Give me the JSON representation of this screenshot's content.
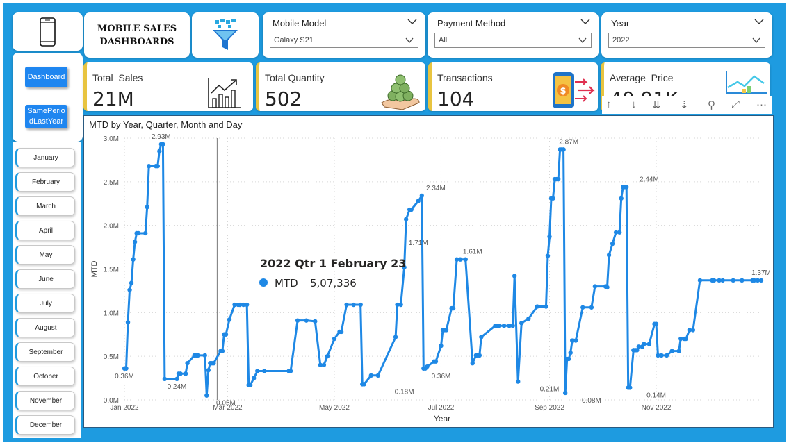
{
  "header": {
    "title_line1": "MOBILE SALES",
    "title_line2": "DASHBOARDS"
  },
  "icons": {
    "phone": "smartphone-icon",
    "filter": "funnel-filter-icon",
    "sales": "growth-bar-chart-icon",
    "quantity": "money-stack-hand-icon",
    "transactions": "mobile-payment-icon",
    "average": "line-bar-chart-icon"
  },
  "slicers": {
    "model": {
      "label": "Mobile Model",
      "value": "Galaxy S21"
    },
    "payment": {
      "label": "Payment Method",
      "value": "All"
    },
    "year": {
      "label": "Year",
      "value": "2022"
    }
  },
  "nav": {
    "dashboard": "Dashboard",
    "same_period_line1": "SamePerio",
    "same_period_line2": "dLastYear"
  },
  "months": [
    "January",
    "February",
    "March",
    "April",
    "May",
    "June",
    "July",
    "August",
    "September",
    "October",
    "November",
    "December"
  ],
  "kpis": {
    "sales": {
      "label": "Total_Sales",
      "value": "21M"
    },
    "quantity": {
      "label": "Total Quantity",
      "value": "502"
    },
    "transactions": {
      "label": "Transactions",
      "value": "104"
    },
    "average": {
      "label": "Average_Price",
      "value": "40.91K"
    }
  },
  "toolbar": {
    "up": "↑",
    "down": "↓",
    "expand_all": "⇊",
    "drill": "⇣",
    "filter": "⚲",
    "focus": "⤢",
    "more": "⋯"
  },
  "colors": {
    "background": "#1e9be0",
    "line": "#1e88e5",
    "kpi_accent": "#e8c440",
    "nav_button": "#1f86f0"
  },
  "tooltip": {
    "title": "2022 Qtr 1 February 23",
    "series": "MTD",
    "value": "5,07,336"
  },
  "chart_data": {
    "type": "line",
    "title": "MTD by Year, Quarter, Month and Day",
    "xlabel": "Year",
    "ylabel": "MTD",
    "ylim": [
      0,
      3.0
    ],
    "y_ticks": [
      "0.0M",
      "0.5M",
      "1.0M",
      "1.5M",
      "2.0M",
      "2.5M",
      "3.0M"
    ],
    "x_ticks": [
      "Jan 2022",
      "Mar 2022",
      "May 2022",
      "Jul 2022",
      "Sep 2022",
      "Nov 2022"
    ],
    "x_tick_dates": [
      "2022-01-01",
      "2022-03-01",
      "2022-05-01",
      "2022-07-01",
      "2022-09-01",
      "2022-11-01"
    ],
    "grid": true,
    "series": [
      {
        "name": "MTD",
        "x": [
          "2022-01-01",
          "2022-01-02",
          "2022-01-03",
          "2022-01-04",
          "2022-01-05",
          "2022-01-06",
          "2022-01-07",
          "2022-01-08",
          "2022-01-09",
          "2022-01-13",
          "2022-01-14",
          "2022-01-15",
          "2022-01-19",
          "2022-01-20",
          "2022-01-21",
          "2022-01-22",
          "2022-01-23",
          "2022-01-24",
          "2022-01-31",
          "2022-02-01",
          "2022-02-02",
          "2022-02-05",
          "2022-02-06",
          "2022-02-10",
          "2022-02-11",
          "2022-02-12",
          "2022-02-16",
          "2022-02-17",
          "2022-02-18",
          "2022-02-19",
          "2022-02-20",
          "2022-02-21",
          "2022-02-25",
          "2022-02-26",
          "2022-02-27",
          "2022-02-28",
          "2022-03-02",
          "2022-03-05",
          "2022-03-07",
          "2022-03-08",
          "2022-03-10",
          "2022-03-12",
          "2022-03-13",
          "2022-03-14",
          "2022-03-16",
          "2022-03-18",
          "2022-03-22",
          "2022-04-05",
          "2022-04-06",
          "2022-04-10",
          "2022-04-15",
          "2022-04-20",
          "2022-04-23",
          "2022-04-25",
          "2022-04-27",
          "2022-05-01",
          "2022-05-04",
          "2022-05-05",
          "2022-05-08",
          "2022-05-12",
          "2022-05-16",
          "2022-05-17",
          "2022-05-18",
          "2022-05-22",
          "2022-05-26",
          "2022-06-05",
          "2022-06-06",
          "2022-06-08",
          "2022-06-10",
          "2022-06-11",
          "2022-06-13",
          "2022-06-14",
          "2022-06-18",
          "2022-06-20",
          "2022-06-21",
          "2022-06-22",
          "2022-06-23",
          "2022-06-27",
          "2022-06-28",
          "2022-07-01",
          "2022-07-02",
          "2022-07-03",
          "2022-07-04",
          "2022-07-07",
          "2022-07-08",
          "2022-07-10",
          "2022-07-12",
          "2022-07-15",
          "2022-07-19",
          "2022-07-21",
          "2022-07-22",
          "2022-07-23",
          "2022-07-24",
          "2022-08-01",
          "2022-08-02",
          "2022-08-03",
          "2022-08-06",
          "2022-08-09",
          "2022-08-11",
          "2022-08-12",
          "2022-08-14",
          "2022-08-16",
          "2022-08-20",
          "2022-08-25",
          "2022-08-30",
          "2022-08-31",
          "2022-09-01",
          "2022-09-02",
          "2022-09-03",
          "2022-09-04",
          "2022-09-05",
          "2022-09-06",
          "2022-09-07",
          "2022-09-08",
          "2022-09-09",
          "2022-09-10",
          "2022-09-11",
          "2022-09-12",
          "2022-09-13",
          "2022-09-14",
          "2022-09-16",
          "2022-09-20",
          "2022-09-25",
          "2022-09-27",
          "2022-10-03",
          "2022-10-04",
          "2022-10-05",
          "2022-10-07",
          "2022-10-09",
          "2022-10-11",
          "2022-10-12",
          "2022-10-13",
          "2022-10-14",
          "2022-10-15",
          "2022-10-16",
          "2022-10-17",
          "2022-10-19",
          "2022-10-20",
          "2022-10-21",
          "2022-10-22",
          "2022-10-24",
          "2022-10-25",
          "2022-10-28",
          "2022-10-31",
          "2022-11-01",
          "2022-11-02",
          "2022-11-04",
          "2022-11-07",
          "2022-11-10",
          "2022-11-14",
          "2022-11-15",
          "2022-11-17",
          "2022-11-18",
          "2022-11-20",
          "2022-11-22",
          "2022-11-26",
          "2022-12-03",
          "2022-12-04",
          "2022-12-07",
          "2022-12-09",
          "2022-12-15",
          "2022-12-20",
          "2022-12-26",
          "2022-12-27",
          "2022-12-29",
          "2022-12-31"
        ],
        "values": [
          0.36,
          0.36,
          0.89,
          1.26,
          1.34,
          1.61,
          1.81,
          1.91,
          1.91,
          1.91,
          2.21,
          2.68,
          2.68,
          2.68,
          2.85,
          2.93,
          2.93,
          0.24,
          0.24,
          0.3,
          0.3,
          0.3,
          0.42,
          0.51,
          0.51,
          0.51,
          0.51,
          0.05,
          0.34,
          0.42,
          0.42,
          0.42,
          0.56,
          0.56,
          0.75,
          0.75,
          0.92,
          1.09,
          1.09,
          1.09,
          1.09,
          1.09,
          0.17,
          0.17,
          0.25,
          0.33,
          0.33,
          0.33,
          0.33,
          0.91,
          0.91,
          0.9,
          0.4,
          0.4,
          0.5,
          0.7,
          0.78,
          0.78,
          1.09,
          1.09,
          1.09,
          0.18,
          0.18,
          0.28,
          0.28,
          0.72,
          1.09,
          1.09,
          1.52,
          2.07,
          2.18,
          2.18,
          2.28,
          2.34,
          0.36,
          0.36,
          0.38,
          0.44,
          0.44,
          0.62,
          0.8,
          0.8,
          0.8,
          1.05,
          1.05,
          1.61,
          1.61,
          1.61,
          0.42,
          0.51,
          0.51,
          0.51,
          0.72,
          0.85,
          0.85,
          0.85,
          0.85,
          0.85,
          0.85,
          1.42,
          0.21,
          0.88,
          0.93,
          1.07,
          1.07,
          1.65,
          1.87,
          2.31,
          2.31,
          2.53,
          2.53,
          2.53,
          2.87,
          2.87,
          2.87,
          0.08,
          0.47,
          0.47,
          0.54,
          0.68,
          0.68,
          1.06,
          1.06,
          1.3,
          1.3,
          1.29,
          1.66,
          1.79,
          1.92,
          1.92,
          2.31,
          2.44,
          2.44,
          2.44,
          0.14,
          0.14,
          0.57,
          0.57,
          0.57,
          0.61,
          0.61,
          0.64,
          0.64,
          0.87,
          0.87,
          0.51,
          0.51,
          0.51,
          0.56,
          0.56,
          0.7,
          0.7,
          0.7,
          0.8,
          0.8,
          1.37,
          1.37,
          1.37,
          1.37,
          1.37,
          1.37,
          1.37,
          1.37,
          1.37,
          1.37,
          1.37
        ]
      }
    ],
    "annotations": [
      {
        "x": "2022-01-01",
        "y": 0.36,
        "text": "0.36M"
      },
      {
        "x": "2022-01-22",
        "y": 2.93,
        "text": "2.93M"
      },
      {
        "x": "2022-01-31",
        "y": 0.24,
        "text": "0.24M"
      },
      {
        "x": "2022-02-28",
        "y": 0.05,
        "text": "0.05M"
      },
      {
        "x": "2022-06-18",
        "y": 1.71,
        "text": "1.71M"
      },
      {
        "x": "2022-06-10",
        "y": 0.18,
        "text": "0.18M"
      },
      {
        "x": "2022-06-28",
        "y": 2.34,
        "text": "2.34M"
      },
      {
        "x": "2022-07-01",
        "y": 0.36,
        "text": "0.36M"
      },
      {
        "x": "2022-07-19",
        "y": 1.61,
        "text": "1.61M"
      },
      {
        "x": "2022-09-01",
        "y": 0.21,
        "text": "0.21M"
      },
      {
        "x": "2022-09-12",
        "y": 2.87,
        "text": "2.87M"
      },
      {
        "x": "2022-09-25",
        "y": 0.08,
        "text": "0.08M"
      },
      {
        "x": "2022-10-28",
        "y": 2.44,
        "text": "2.44M"
      },
      {
        "x": "2022-11-01",
        "y": 0.14,
        "text": "0.14M"
      },
      {
        "x": "2022-12-31",
        "y": 1.37,
        "text": "1.37M"
      }
    ],
    "hover_line_x": "2022-02-23"
  }
}
